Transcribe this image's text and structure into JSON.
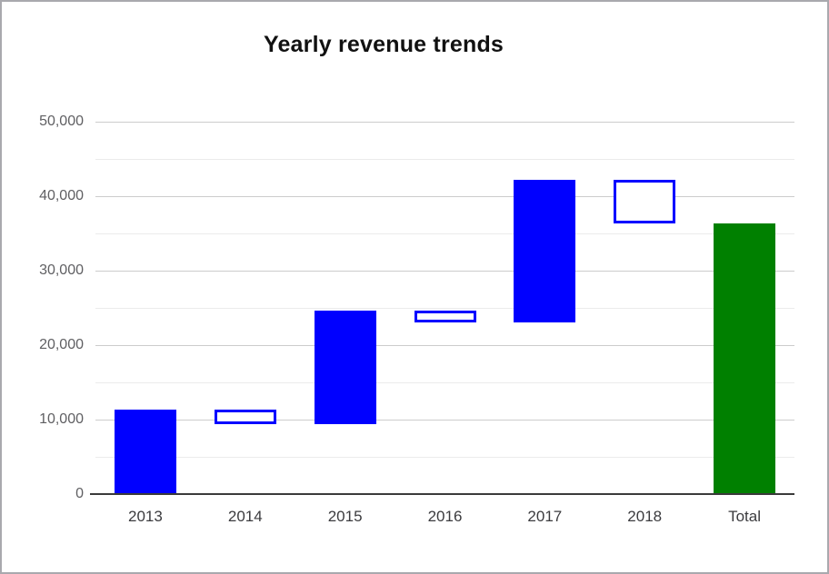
{
  "window": {
    "background": "#ffffff",
    "border_color": "#a9a9ae"
  },
  "chart_data": {
    "type": "waterfall",
    "title": "Yearly revenue trends",
    "categories": [
      "2013",
      "2014",
      "2015",
      "2016",
      "2017",
      "2018",
      "Total"
    ],
    "bars": [
      {
        "label": "2013",
        "from": 0,
        "to": 11300,
        "kind": "increase"
      },
      {
        "label": "2014",
        "from": 11300,
        "to": 9400,
        "kind": "decrease"
      },
      {
        "label": "2015",
        "from": 9400,
        "to": 24600,
        "kind": "increase"
      },
      {
        "label": "2016",
        "from": 24600,
        "to": 23000,
        "kind": "decrease"
      },
      {
        "label": "2017",
        "from": 23000,
        "to": 42200,
        "kind": "increase"
      },
      {
        "label": "2018",
        "from": 42200,
        "to": 36400,
        "kind": "decrease"
      },
      {
        "label": "Total",
        "from": 0,
        "to": 36400,
        "kind": "total"
      }
    ],
    "y_axis": {
      "min": 0,
      "max": 50000,
      "major_step": 10000,
      "minor_step": 5000,
      "ticks": [
        {
          "value": 0,
          "label": "0"
        },
        {
          "value": 10000,
          "label": "10,000"
        },
        {
          "value": 20000,
          "label": "20,000"
        },
        {
          "value": 30000,
          "label": "30,000"
        },
        {
          "value": 40000,
          "label": "40,000"
        },
        {
          "value": 50000,
          "label": "50,000"
        }
      ]
    },
    "colors": {
      "increase_fill": "#0000ff",
      "decrease_border": "#0000ff",
      "decrease_fill": "#ffffff",
      "total_fill": "#008000",
      "grid_major": "#cccccc",
      "grid_minor": "#ebebeb",
      "baseline": "#3a3a3a"
    },
    "layout_hints": {
      "legend": "none",
      "grid": "on",
      "ylim": [
        0,
        50000
      ]
    }
  }
}
